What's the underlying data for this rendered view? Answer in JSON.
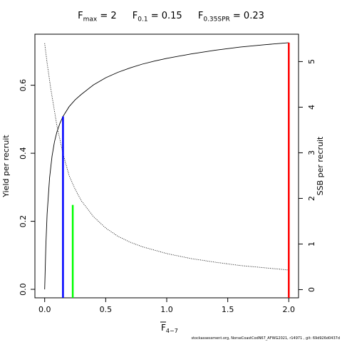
{
  "header": {
    "f_max": {
      "symbol": "F",
      "sub": "max",
      "value": " = 2"
    },
    "f_01": {
      "symbol": "F",
      "sub": "0.1",
      "value": " = 0.15"
    },
    "f_spr": {
      "symbol": "F",
      "sub": "0.35SPR",
      "value": " = 0.23"
    }
  },
  "footer": {
    "text": "stockassessment.org, NorseCoastCodN67_AFWG2021, r14971 , git: 69d926d0437d"
  },
  "chart_data": {
    "type": "line",
    "x_axis": {
      "label": "F",
      "label_sub": "4−7",
      "overbar": true,
      "lim": [
        -0.08,
        2.08
      ],
      "ticks": [
        0,
        0.5,
        1,
        1.5,
        2
      ],
      "tick_labels": [
        "0.0",
        "0.5",
        "1.0",
        "1.5",
        "2.0"
      ]
    },
    "y_axis_left": {
      "label": "Yield per recruit",
      "lim": [
        -0.025,
        0.75
      ],
      "ticks": [
        0,
        0.2,
        0.4,
        0.6
      ],
      "tick_labels": [
        "0.0",
        "0.2",
        "0.4",
        "0.6"
      ]
    },
    "y_axis_right": {
      "label": "SSB per recruit",
      "lim": [
        -0.18,
        5.6
      ],
      "ticks": [
        0,
        1,
        2,
        3,
        4,
        5
      ],
      "tick_labels": [
        "0",
        "1",
        "2",
        "3",
        "4",
        "5"
      ]
    },
    "series": [
      {
        "style": "solid",
        "axis": "left",
        "color": "#000000",
        "x": [
          0,
          0.01,
          0.02,
          0.04,
          0.06,
          0.08,
          0.1,
          0.125,
          0.15,
          0.2,
          0.25,
          0.3,
          0.4,
          0.5,
          0.6,
          0.7,
          0.8,
          0.9,
          1.0,
          1.2,
          1.4,
          1.6,
          1.8,
          2.0
        ],
        "y": [
          0,
          0.131,
          0.221,
          0.328,
          0.391,
          0.433,
          0.462,
          0.488,
          0.508,
          0.537,
          0.557,
          0.573,
          0.601,
          0.622,
          0.638,
          0.651,
          0.662,
          0.671,
          0.679,
          0.692,
          0.703,
          0.712,
          0.719,
          0.725
        ]
      },
      {
        "style": "dotted",
        "axis": "right",
        "color": "#000000",
        "x": [
          0,
          0.02,
          0.05,
          0.1,
          0.15,
          0.2,
          0.25,
          0.3,
          0.4,
          0.5,
          0.6,
          0.7,
          0.8,
          1.0,
          1.2,
          1.4,
          1.6,
          1.8,
          2.0
        ],
        "y": [
          5.4,
          4.97,
          4.4,
          3.6,
          2.98,
          2.5,
          2.2,
          1.95,
          1.6,
          1.35,
          1.17,
          1.04,
          0.94,
          0.79,
          0.68,
          0.6,
          0.53,
          0.48,
          0.43
        ]
      }
    ],
    "reference_lines": [
      {
        "label": "F0.1",
        "x": 0.15,
        "y": 0.508,
        "color": "#0000ff"
      },
      {
        "label": "F0.35SPR",
        "x": 0.23,
        "y": 0.248,
        "color": "#00ff00"
      },
      {
        "label": "Fmax",
        "x": 2.0,
        "y": 0.725,
        "color": "#ff0000"
      }
    ],
    "grid": false,
    "legend": "none"
  }
}
